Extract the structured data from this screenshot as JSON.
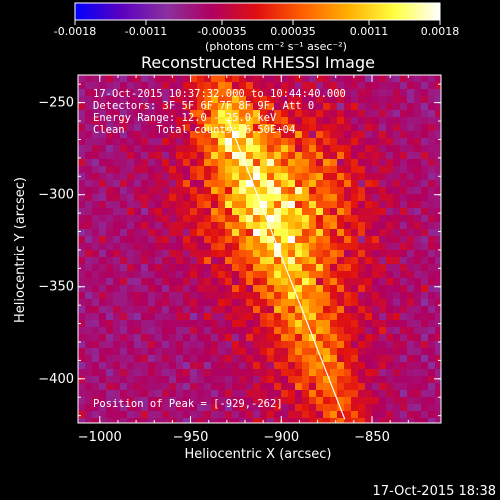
{
  "colorbar": {
    "ticks": [
      "-0.0018",
      "-0.0011",
      "-0.00035",
      "0.00035",
      "0.0011",
      "0.0018"
    ],
    "tick_values": [
      -0.0018,
      -0.0011,
      -0.00035,
      0.00035,
      0.0011,
      0.0018
    ],
    "range": [
      -0.0018,
      0.0018
    ],
    "units": "(photons cm⁻² s⁻¹ asec⁻²)",
    "colors": [
      "#0000ff",
      "#5a00c0",
      "#8a30a0",
      "#b00060",
      "#e01010",
      "#ff6000",
      "#ffb000",
      "#ffff40",
      "#ffffff"
    ]
  },
  "chart_data": {
    "type": "heatmap",
    "title": "Reconstructed RHESSI Image",
    "xlabel": "Heliocentric X (arcsec)",
    "ylabel": "Heliocentric Y (arcsec)",
    "xlim": [
      -1012,
      -812
    ],
    "ylim": [
      -424,
      -235
    ],
    "xticks": [
      -1000,
      -950,
      -900,
      -850
    ],
    "yticks": [
      -250,
      -300,
      -350,
      -400
    ],
    "xtick_labels": [
      "−1000",
      "−950",
      "−900",
      "−850"
    ],
    "ytick_labels": [
      "−250",
      "−300",
      "−350",
      "−400"
    ],
    "annotations": [
      "17-Oct-2015 10:37:32.000 to 10:44:40.000",
      "Detectors: 3F 5F 6F 7F 8F 9F, Att 0",
      "Energy Range: 12.0 - 25.0 keV",
      "Clean     Total counts: 6.50E+04"
    ],
    "peak_label": "Position of Peak = [-929,-262]",
    "peak": [
      -929,
      -262
    ],
    "limb_line": [
      [
        -929,
        -260
      ],
      [
        -865,
        -422
      ]
    ],
    "grid": false
  },
  "footer": {
    "timestamp": "17-Oct-2015 18:38"
  }
}
